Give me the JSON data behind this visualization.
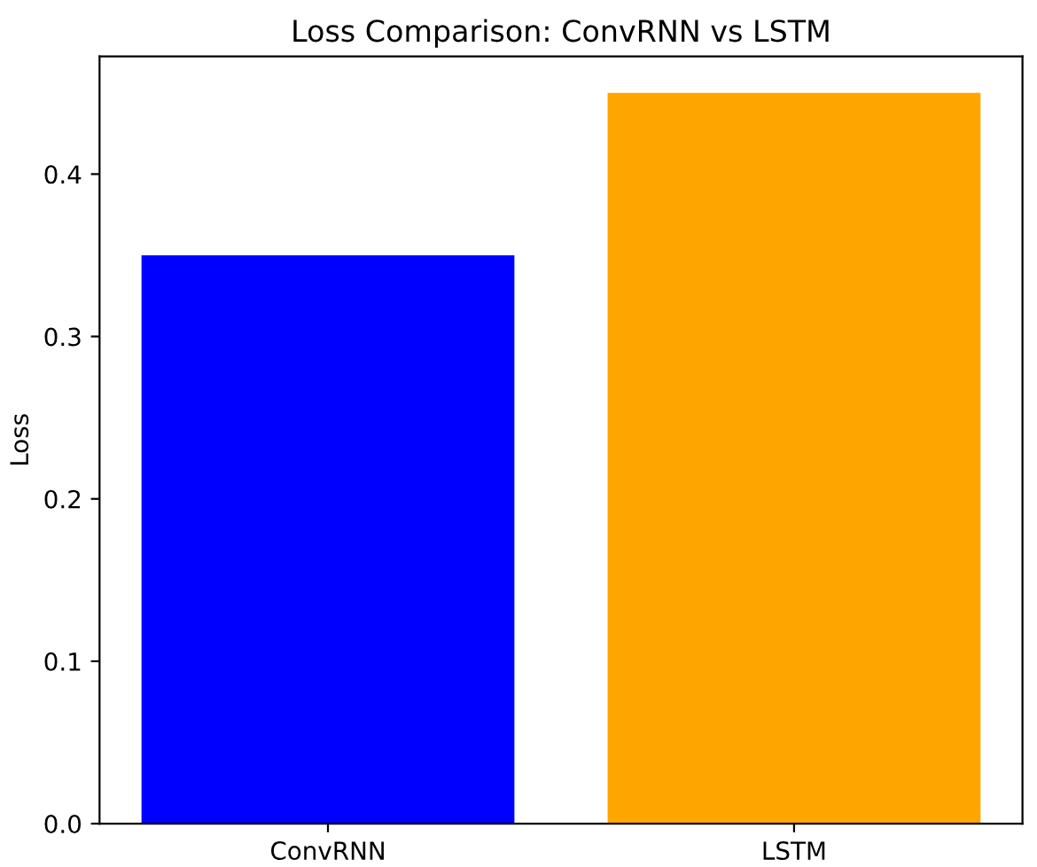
{
  "chart_data": {
    "type": "bar",
    "title": "Loss Comparison: ConvRNN vs LSTM",
    "ylabel": "Loss",
    "categories": [
      "ConvRNN",
      "LSTM"
    ],
    "values": [
      0.35,
      0.45
    ],
    "colors": [
      "#0000ff",
      "#ffa500"
    ],
    "ylim": [
      0,
      0.4725
    ],
    "yticks": [
      {
        "value": 0,
        "label": "0.0"
      },
      0.1,
      0.2,
      0.3,
      0.4
    ],
    "grid": false
  }
}
